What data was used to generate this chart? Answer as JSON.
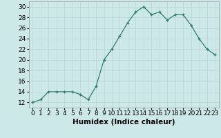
{
  "x": [
    0,
    1,
    2,
    3,
    4,
    5,
    6,
    7,
    8,
    9,
    10,
    11,
    12,
    13,
    14,
    15,
    16,
    17,
    18,
    19,
    20,
    21,
    22,
    23
  ],
  "y": [
    12,
    12.5,
    14,
    14,
    14,
    14,
    13.5,
    12.5,
    15,
    20,
    22,
    24.5,
    27,
    29,
    30,
    28.5,
    29,
    27.5,
    28.5,
    28.5,
    26.5,
    24,
    22,
    21
  ],
  "xlabel": "Humidex (Indice chaleur)",
  "xlim": [
    -0.5,
    23.5
  ],
  "ylim": [
    11,
    31
  ],
  "yticks": [
    12,
    14,
    16,
    18,
    20,
    22,
    24,
    26,
    28,
    30
  ],
  "xtick_labels": [
    "0",
    "1",
    "2",
    "3",
    "4",
    "5",
    "6",
    "7",
    "8",
    "9",
    "10",
    "11",
    "12",
    "13",
    "14",
    "15",
    "16",
    "17",
    "18",
    "19",
    "20",
    "21",
    "22",
    "23"
  ],
  "line_color": "#2e7d6e",
  "marker": "+",
  "bg_color": "#cce8e8",
  "grid_color": "#b8d8d8",
  "label_fontsize": 7.5,
  "tick_fontsize": 6.5
}
